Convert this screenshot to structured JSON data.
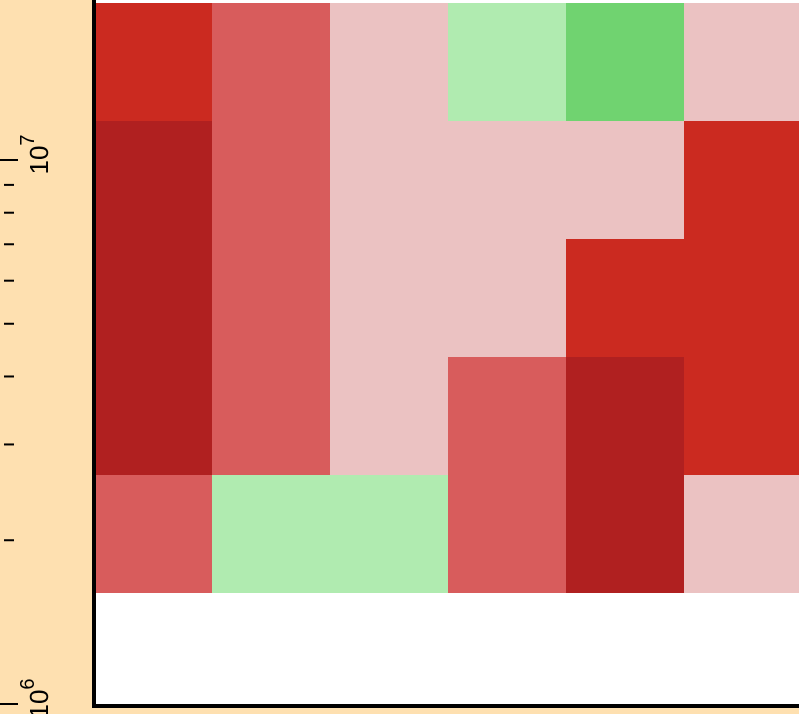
{
  "chart_data": {
    "type": "heatmap",
    "y_scale": "log",
    "y_tick_labels": [
      {
        "value": 1000000,
        "base": "10",
        "exponent": "6"
      },
      {
        "value": 10000000,
        "base": "10",
        "exponent": "7"
      }
    ],
    "y_minor_ticks": [
      2000000,
      3000000,
      4000000,
      5000000,
      6000000,
      7000000,
      8000000,
      9000000
    ],
    "x_columns": 6,
    "rows": [
      [
        "#cb2a20",
        "#d85c5c",
        "#ebc2c2",
        "#b0ebb0",
        "#70d370",
        "#ebc2c2"
      ],
      [
        "#b02020",
        "#d85c5c",
        "#ebc2c2",
        "#ebc2c2",
        "#ebc2c2",
        "#cb2a20"
      ],
      [
        "#b02020",
        "#d85c5c",
        "#ebc2c2",
        "#ebc2c2",
        "#cb2a20",
        "#cb2a20"
      ],
      [
        "#b02020",
        "#d85c5c",
        "#ebc2c2",
        "#d85c5c",
        "#b02020",
        "#cb2a20"
      ],
      [
        "#d85c5c",
        "#b0ebb0",
        "#b0ebb0",
        "#d85c5c",
        "#b02020",
        "#ebc2c2"
      ]
    ],
    "grid": false,
    "colors": {
      "background": "#fee0b0",
      "plot_area": "#ffffff",
      "axis": "#000000"
    }
  }
}
